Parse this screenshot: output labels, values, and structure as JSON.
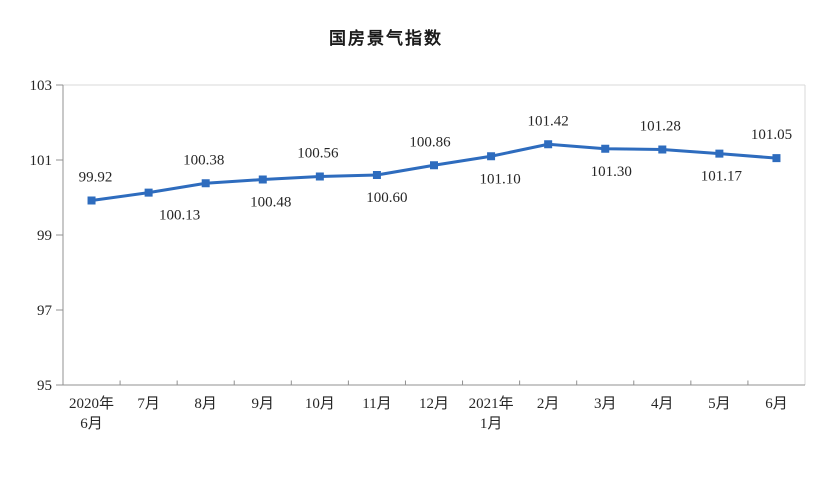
{
  "chart_data": {
    "type": "line",
    "title": "国房景气指数",
    "categories": [
      [
        "2020年",
        "6月"
      ],
      [
        "7月"
      ],
      [
        "8月"
      ],
      [
        "9月"
      ],
      [
        "10月"
      ],
      [
        "11月"
      ],
      [
        "12月"
      ],
      [
        "2021年",
        "1月"
      ],
      [
        "2月"
      ],
      [
        "3月"
      ],
      [
        "4月"
      ],
      [
        "5月"
      ],
      [
        "6月"
      ]
    ],
    "values": [
      99.92,
      100.13,
      100.38,
      100.48,
      100.56,
      100.6,
      100.86,
      101.1,
      101.42,
      101.3,
      101.28,
      101.17,
      101.05
    ],
    "labels": [
      "99.92",
      "100.13",
      "100.38",
      "100.48",
      "100.56",
      "100.60",
      "100.86",
      "101.10",
      "101.42",
      "101.30",
      "101.28",
      "101.17",
      "101.05"
    ],
    "label_positions": [
      "above",
      "below",
      "above",
      "below",
      "above",
      "below",
      "above",
      "below",
      "above",
      "below",
      "above",
      "below",
      "above"
    ],
    "label_dx": [
      4,
      31,
      -2,
      8,
      -2,
      10,
      -4,
      9,
      0,
      6,
      -2,
      2,
      -5
    ],
    "xlabel": "",
    "ylabel": "",
    "ylim": [
      95,
      103
    ],
    "yticks": [
      95,
      97,
      99,
      101,
      103
    ],
    "grid": false,
    "legend": "none",
    "line_color": "#2E6CBE",
    "marker": "square",
    "axis_color": "#909090",
    "border_color": "#D9D9D9",
    "text_color": "#262626"
  }
}
